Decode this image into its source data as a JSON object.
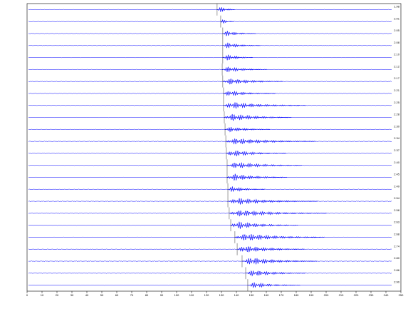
{
  "chart_data": {
    "type": "seismic",
    "color": "#0000ff",
    "xlim": [
      0,
      250
    ],
    "xticks": [
      0,
      10,
      20,
      30,
      40,
      50,
      60,
      70,
      80,
      90,
      100,
      110,
      120,
      130,
      140,
      150,
      160,
      170,
      180,
      190,
      200,
      210,
      220,
      230,
      240,
      250
    ],
    "traces": [
      {
        "label": "1.98",
        "arrival": 127.1,
        "amplitude": 7,
        "duration": 12
      },
      {
        "label": "2.01",
        "arrival": 129.5,
        "amplitude": 5,
        "duration": 9
      },
      {
        "label": "2.05",
        "arrival": 130.9,
        "amplitude": 6,
        "duration": 22
      },
      {
        "label": "2.08",
        "arrival": 130.9,
        "amplitude": 6,
        "duration": 25
      },
      {
        "label": "2.10",
        "arrival": 130.9,
        "amplitude": 7,
        "duration": 20
      },
      {
        "label": "2.12",
        "arrival": 130.5,
        "amplitude": 6,
        "duration": 30
      },
      {
        "label": "2.17",
        "arrival": 130.9,
        "amplitude": 7,
        "duration": 40
      },
      {
        "label": "2.21",
        "arrival": 131.4,
        "amplitude": 6,
        "duration": 35
      },
      {
        "label": "2.25",
        "arrival": 131.4,
        "amplitude": 7,
        "duration": 55
      },
      {
        "label": "2.28",
        "arrival": 131.9,
        "amplitude": 8,
        "duration": 45
      },
      {
        "label": "2.30",
        "arrival": 132.4,
        "amplitude": 6,
        "duration": 30
      },
      {
        "label": "2.34",
        "arrival": 132.9,
        "amplitude": 7,
        "duration": 60
      },
      {
        "label": "2.37",
        "arrival": 133.3,
        "amplitude": 7,
        "duration": 40
      },
      {
        "label": "2.40",
        "arrival": 133.8,
        "amplitude": 7,
        "duration": 50
      },
      {
        "label": "2.45",
        "arrival": 133.8,
        "amplitude": 8,
        "duration": 40
      },
      {
        "label": "2.49",
        "arrival": 134.3,
        "amplitude": 6,
        "duration": 25
      },
      {
        "label": "2.54",
        "arrival": 134.3,
        "amplitude": 7,
        "duration": 60
      },
      {
        "label": "2.58",
        "arrival": 135.2,
        "amplitude": 7,
        "duration": 65
      },
      {
        "label": "2.63",
        "arrival": 136.2,
        "amplitude": 8,
        "duration": 45
      },
      {
        "label": "2.68",
        "arrival": 139.0,
        "amplitude": 8,
        "duration": 60
      },
      {
        "label": "2.74",
        "arrival": 140.5,
        "amplitude": 8,
        "duration": 45
      },
      {
        "label": "2.80",
        "arrival": 143.8,
        "amplitude": 8,
        "duration": 50
      },
      {
        "label": "2.86",
        "arrival": 146.2,
        "amplitude": 7,
        "duration": 40
      },
      {
        "label": "2.90",
        "arrival": 147.6,
        "amplitude": 6,
        "duration": 35
      }
    ]
  }
}
